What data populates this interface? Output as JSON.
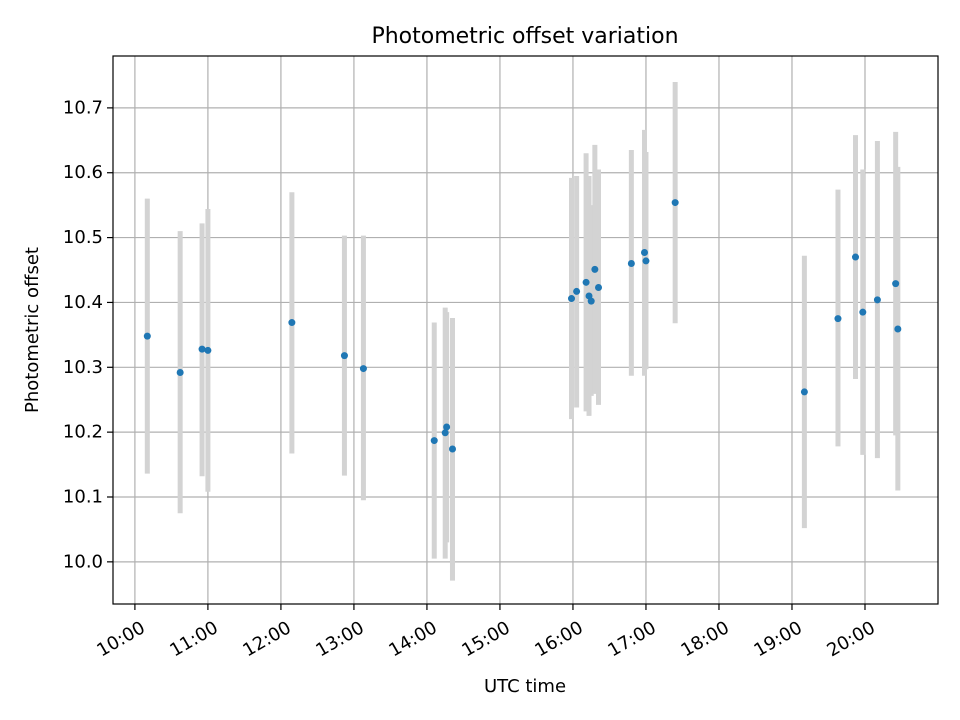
{
  "chart_data": {
    "type": "scatter",
    "title": "Photometric offset variation",
    "xlabel": "UTC time",
    "ylabel": "Photometric offset",
    "xlim": [
      9.7,
      21.0
    ],
    "ylim": [
      9.935,
      10.78
    ],
    "grid": true,
    "x_tick_values": [
      10,
      11,
      12,
      13,
      14,
      15,
      16,
      17,
      18,
      19,
      20
    ],
    "x_tick_labels": [
      "10:00",
      "11:00",
      "12:00",
      "13:00",
      "14:00",
      "15:00",
      "16:00",
      "17:00",
      "18:00",
      "19:00",
      "20:00"
    ],
    "y_tick_values": [
      10.0,
      10.1,
      10.2,
      10.3,
      10.4,
      10.5,
      10.6,
      10.7
    ],
    "y_tick_labels": [
      "10.0",
      "10.1",
      "10.2",
      "10.3",
      "10.4",
      "10.5",
      "10.6",
      "10.7"
    ],
    "point_color": "#1f77b4",
    "errorbar_color": "#d3d3d3",
    "points": [
      {
        "x": 10.17,
        "y": 10.348,
        "lo": 10.136,
        "hi": 10.56
      },
      {
        "x": 10.62,
        "y": 10.292,
        "lo": 10.075,
        "hi": 10.51
      },
      {
        "x": 10.92,
        "y": 10.328,
        "lo": 10.132,
        "hi": 10.522
      },
      {
        "x": 11.0,
        "y": 10.326,
        "lo": 10.108,
        "hi": 10.544
      },
      {
        "x": 12.15,
        "y": 10.369,
        "lo": 10.167,
        "hi": 10.57
      },
      {
        "x": 12.87,
        "y": 10.318,
        "lo": 10.133,
        "hi": 10.503
      },
      {
        "x": 13.13,
        "y": 10.298,
        "lo": 10.095,
        "hi": 10.503
      },
      {
        "x": 14.1,
        "y": 10.187,
        "lo": 10.005,
        "hi": 10.369
      },
      {
        "x": 14.25,
        "y": 10.199,
        "lo": 10.005,
        "hi": 10.392
      },
      {
        "x": 14.27,
        "y": 10.208,
        "lo": 10.03,
        "hi": 10.385
      },
      {
        "x": 14.35,
        "y": 10.174,
        "lo": 9.971,
        "hi": 10.376
      },
      {
        "x": 15.98,
        "y": 10.406,
        "lo": 10.22,
        "hi": 10.592
      },
      {
        "x": 16.05,
        "y": 10.417,
        "lo": 10.238,
        "hi": 10.595
      },
      {
        "x": 16.18,
        "y": 10.431,
        "lo": 10.232,
        "hi": 10.63
      },
      {
        "x": 16.22,
        "y": 10.41,
        "lo": 10.225,
        "hi": 10.595
      },
      {
        "x": 16.25,
        "y": 10.402,
        "lo": 10.256,
        "hi": 10.55
      },
      {
        "x": 16.3,
        "y": 10.451,
        "lo": 10.259,
        "hi": 10.643
      },
      {
        "x": 16.35,
        "y": 10.423,
        "lo": 10.242,
        "hi": 10.605
      },
      {
        "x": 16.8,
        "y": 10.46,
        "lo": 10.287,
        "hi": 10.635
      },
      {
        "x": 16.98,
        "y": 10.477,
        "lo": 10.287,
        "hi": 10.666
      },
      {
        "x": 17.0,
        "y": 10.464,
        "lo": 10.297,
        "hi": 10.632
      },
      {
        "x": 17.4,
        "y": 10.554,
        "lo": 10.368,
        "hi": 10.74
      },
      {
        "x": 19.17,
        "y": 10.262,
        "lo": 10.052,
        "hi": 10.472
      },
      {
        "x": 19.63,
        "y": 10.375,
        "lo": 10.178,
        "hi": 10.574
      },
      {
        "x": 19.87,
        "y": 10.47,
        "lo": 10.282,
        "hi": 10.658
      },
      {
        "x": 19.97,
        "y": 10.385,
        "lo": 10.165,
        "hi": 10.605
      },
      {
        "x": 20.17,
        "y": 10.404,
        "lo": 10.16,
        "hi": 10.649
      },
      {
        "x": 20.42,
        "y": 10.429,
        "lo": 10.195,
        "hi": 10.663
      },
      {
        "x": 20.45,
        "y": 10.359,
        "lo": 10.11,
        "hi": 10.609
      }
    ]
  }
}
